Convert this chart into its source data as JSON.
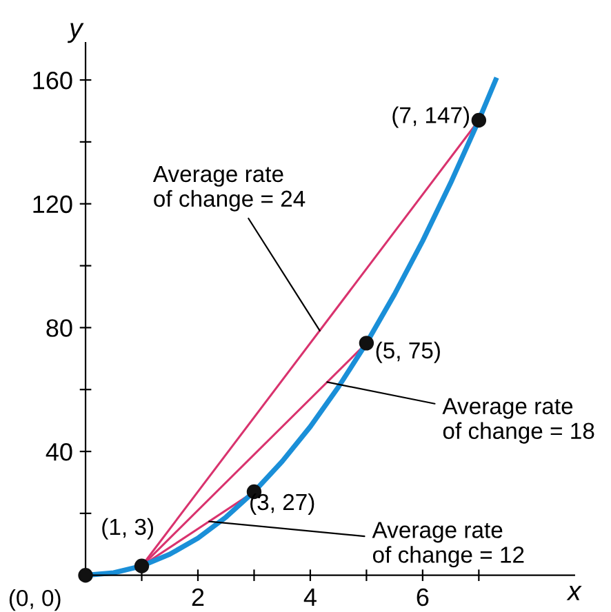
{
  "chart_data": {
    "type": "line",
    "xlabel": "x",
    "ylabel": "y",
    "xlim": [
      0,
      8.7
    ],
    "ylim": [
      0,
      172
    ],
    "xticks": [
      {
        "value": 1,
        "label": null
      },
      2,
      {
        "value": 3,
        "label": null
      },
      4,
      {
        "value": 5,
        "label": null
      },
      6,
      {
        "value": 7,
        "label": null
      }
    ],
    "yticks": [
      {
        "value": 20,
        "label": null
      },
      40,
      {
        "value": 60,
        "label": null
      },
      80,
      {
        "value": 100,
        "label": null
      },
      120,
      {
        "value": 140,
        "label": null
      },
      160
    ],
    "grid": false,
    "series": [
      {
        "color": "#1a8fd8",
        "x": [
          0,
          0.5,
          1,
          1.5,
          2,
          2.5,
          3,
          3.5,
          4,
          4.5,
          5,
          5.5,
          6,
          6.5,
          7,
          7.3
        ],
        "values": [
          0,
          0.8,
          3,
          6.8,
          12,
          18.8,
          27,
          36.8,
          48,
          60.8,
          75,
          90.8,
          108,
          126.8,
          147,
          160
        ]
      },
      {
        "color": "#d9336e",
        "x": [
          1,
          7
        ],
        "values": [
          3,
          147
        ]
      },
      {
        "color": "#d9336e",
        "x": [
          1,
          5
        ],
        "values": [
          3,
          75
        ]
      },
      {
        "color": "#d9336e",
        "x": [
          1,
          3
        ],
        "values": [
          3,
          27
        ]
      },
      {
        "type": "scatter",
        "color": "#111111",
        "marker": "circle",
        "x": [
          0,
          1,
          3,
          5,
          7
        ],
        "values": [
          0,
          3,
          27,
          75,
          147
        ]
      }
    ],
    "annotations": [
      {
        "text": "(0, 0)",
        "x": 0,
        "y": 0
      },
      {
        "text": "(1, 3)",
        "x": 1,
        "y": 3
      },
      {
        "text": "(3, 27)",
        "x": 3,
        "y": 27
      },
      {
        "text": "(5, 75)",
        "x": 5,
        "y": 75
      },
      {
        "text": "(7, 147)",
        "x": 7,
        "y": 147
      },
      {
        "text": "Average rate\nof change = 24",
        "x": 4.17,
        "y": 79
      },
      {
        "text": "Average rate\nof change = 18",
        "x": 4.3,
        "y": 62.4
      },
      {
        "text": "Average rate\nof change = 12",
        "x": 2.2,
        "y": 17.4
      }
    ]
  }
}
